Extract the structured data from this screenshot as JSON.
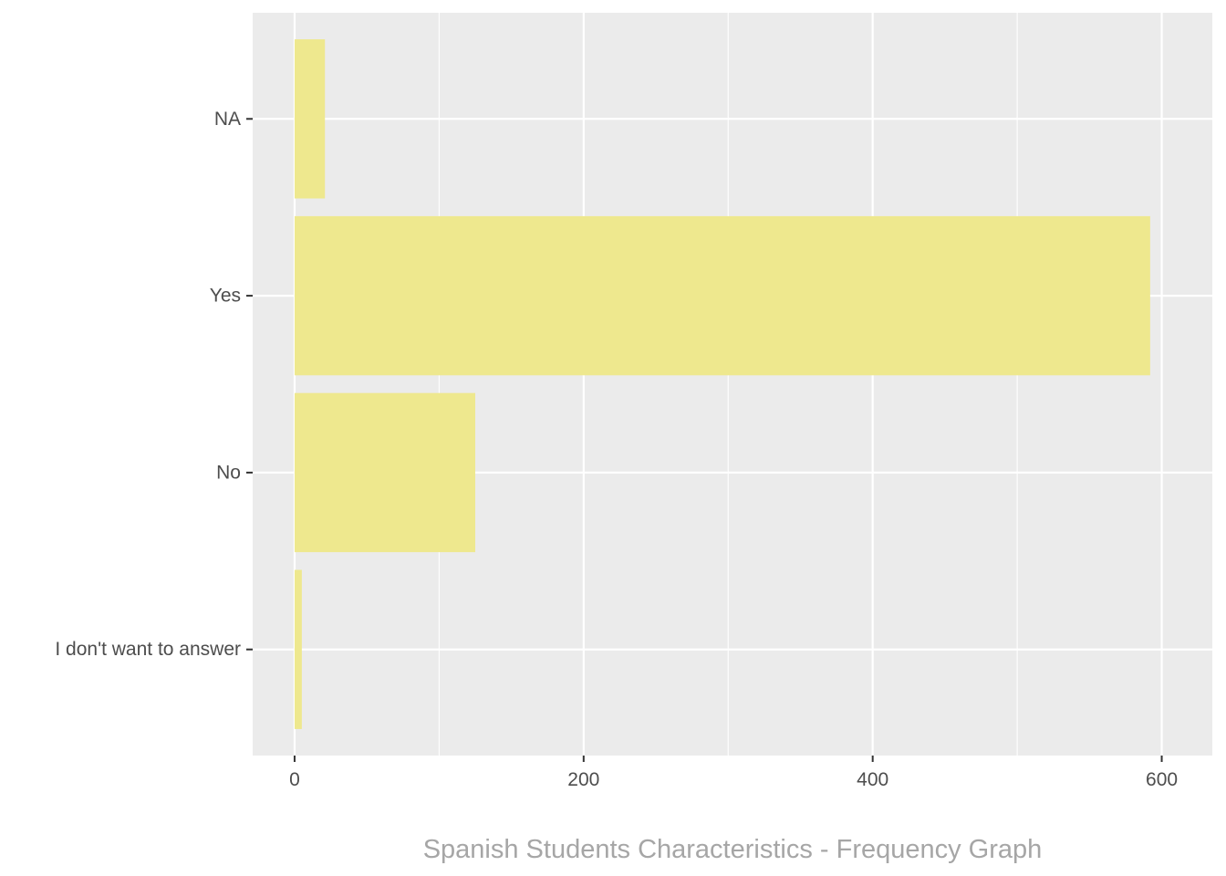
{
  "chart_data": {
    "type": "bar",
    "orientation": "horizontal",
    "categories": [
      "I don't want to answer",
      "No",
      "Yes",
      "NA"
    ],
    "values": [
      5,
      125,
      592,
      21
    ],
    "xlim": [
      -29,
      635
    ],
    "xticks": [
      0,
      200,
      400,
      600
    ],
    "xtick_labels": [
      "0",
      "200",
      "400",
      "600"
    ],
    "minor_xticks": [
      100,
      300,
      500
    ],
    "xlabel": "",
    "ylabel": "",
    "title": "",
    "caption": "Spanish Students Characteristics - Frequency Graph",
    "grid": true,
    "bar_color": "#EEE88E",
    "panel_color": "#EBEBEB",
    "grid_color": "#FFFFFF",
    "text_color": "#4D4D4D",
    "caption_color": "#A6A6A6"
  }
}
